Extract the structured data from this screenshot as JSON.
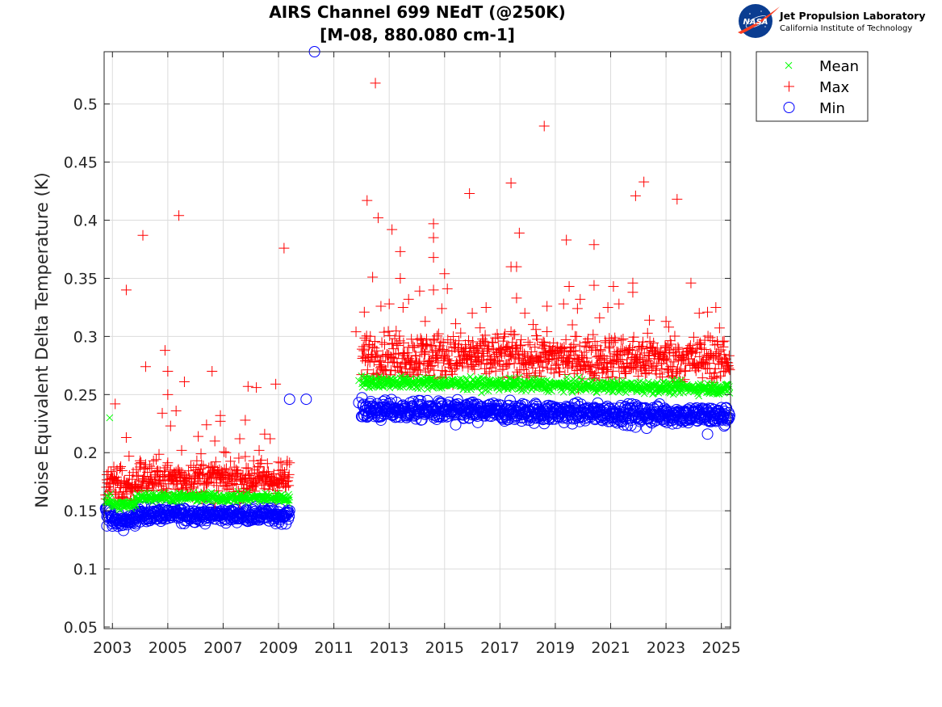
{
  "logo": {
    "org_name": "Jet Propulsion Laboratory",
    "org_sub": "California Institute of Technology",
    "badge_text": "NASA"
  },
  "chart_data": {
    "type": "scatter",
    "title": "AIRS Channel 699 NEdT (@250K)",
    "subtitle": "[M-08, 880.080 cm-1]",
    "xlabel": "",
    "ylabel": "Noise Equivalent Delta Temperature (K)",
    "xlim": [
      2002.7,
      2025.33
    ],
    "ylim": [
      0.0486,
      0.545
    ],
    "grid": true,
    "legend_position": "top-right-outside",
    "x_ticks": [
      2003,
      2005,
      2007,
      2009,
      2011,
      2013,
      2015,
      2017,
      2019,
      2021,
      2023,
      2025
    ],
    "x_tick_labels": [
      "2003",
      "2005",
      "2007",
      "2009",
      "2011",
      "2013",
      "2015",
      "2017",
      "2019",
      "2021",
      "2023",
      "2025"
    ],
    "y_ticks": [
      0.05,
      0.1,
      0.15,
      0.2,
      0.25,
      0.3,
      0.35,
      0.4,
      0.45,
      0.5
    ],
    "y_tick_labels": [
      "0.05",
      "0.1",
      "0.15",
      "0.2",
      "0.25",
      "0.3",
      "0.35",
      "0.4",
      "0.45",
      "0.5"
    ],
    "series": [
      {
        "name": "Mean",
        "marker": "x",
        "color": "#00ff00",
        "bands": [
          {
            "x_start": 2002.75,
            "x_end": 2002.95,
            "y_start": 0.16,
            "y_end": 0.16,
            "spread": 0.003
          },
          {
            "x_start": 2002.95,
            "x_end": 2003.85,
            "y_start": 0.155,
            "y_end": 0.155,
            "spread": 0.002
          },
          {
            "x_start": 2003.85,
            "x_end": 2009.4,
            "y_start": 0.162,
            "y_end": 0.161,
            "spread": 0.002
          },
          {
            "x_start": 2012.0,
            "x_end": 2025.3,
            "y_start": 0.261,
            "y_end": 0.255,
            "spread": 0.0025
          }
        ],
        "outliers": [
          {
            "x": 2002.9,
            "y": 0.23
          },
          {
            "x": 2011.9,
            "y": 0.262
          }
        ]
      },
      {
        "name": "Max",
        "marker": "+",
        "color": "#ff0000",
        "bands": [
          {
            "x_start": 2002.75,
            "x_end": 2003.85,
            "y_start": 0.173,
            "y_end": 0.17,
            "spread": 0.008
          },
          {
            "x_start": 2003.85,
            "x_end": 2009.4,
            "y_start": 0.178,
            "y_end": 0.177,
            "spread": 0.008
          },
          {
            "x_start": 2012.0,
            "x_end": 2025.3,
            "y_start": 0.284,
            "y_end": 0.28,
            "spread": 0.01
          }
        ],
        "outliers": [
          {
            "x": 2002.8,
            "y": 0.181
          },
          {
            "x": 2003.1,
            "y": 0.242
          },
          {
            "x": 2003.5,
            "y": 0.34
          },
          {
            "x": 2003.5,
            "y": 0.213
          },
          {
            "x": 2003.3,
            "y": 0.188
          },
          {
            "x": 2003.6,
            "y": 0.197
          },
          {
            "x": 2004.1,
            "y": 0.387
          },
          {
            "x": 2004.2,
            "y": 0.274
          },
          {
            "x": 2004.0,
            "y": 0.193
          },
          {
            "x": 2004.9,
            "y": 0.288
          },
          {
            "x": 2005.0,
            "y": 0.27
          },
          {
            "x": 2005.0,
            "y": 0.25
          },
          {
            "x": 2004.8,
            "y": 0.234
          },
          {
            "x": 2005.1,
            "y": 0.223
          },
          {
            "x": 2005.3,
            "y": 0.236
          },
          {
            "x": 2005.4,
            "y": 0.404
          },
          {
            "x": 2005.6,
            "y": 0.261
          },
          {
            "x": 2005.5,
            "y": 0.202
          },
          {
            "x": 2006.1,
            "y": 0.214
          },
          {
            "x": 2006.2,
            "y": 0.199
          },
          {
            "x": 2006.4,
            "y": 0.224
          },
          {
            "x": 2006.6,
            "y": 0.27
          },
          {
            "x": 2006.7,
            "y": 0.21
          },
          {
            "x": 2006.9,
            "y": 0.232
          },
          {
            "x": 2006.9,
            "y": 0.227
          },
          {
            "x": 2007.1,
            "y": 0.2
          },
          {
            "x": 2007.6,
            "y": 0.212
          },
          {
            "x": 2007.8,
            "y": 0.228
          },
          {
            "x": 2007.9,
            "y": 0.257
          },
          {
            "x": 2008.1,
            "y": 0.193
          },
          {
            "x": 2008.2,
            "y": 0.256
          },
          {
            "x": 2008.3,
            "y": 0.202
          },
          {
            "x": 2008.5,
            "y": 0.216
          },
          {
            "x": 2008.7,
            "y": 0.212
          },
          {
            "x": 2008.9,
            "y": 0.259
          },
          {
            "x": 2009.0,
            "y": 0.192
          },
          {
            "x": 2009.2,
            "y": 0.376
          },
          {
            "x": 2011.8,
            "y": 0.304
          },
          {
            "x": 2012.1,
            "y": 0.321
          },
          {
            "x": 2012.2,
            "y": 0.417
          },
          {
            "x": 2012.4,
            "y": 0.351
          },
          {
            "x": 2012.5,
            "y": 0.518
          },
          {
            "x": 2012.6,
            "y": 0.402
          },
          {
            "x": 2012.7,
            "y": 0.326
          },
          {
            "x": 2013.0,
            "y": 0.328
          },
          {
            "x": 2013.1,
            "y": 0.392
          },
          {
            "x": 2013.4,
            "y": 0.373
          },
          {
            "x": 2013.4,
            "y": 0.35
          },
          {
            "x": 2013.5,
            "y": 0.325
          },
          {
            "x": 2013.7,
            "y": 0.332
          },
          {
            "x": 2014.1,
            "y": 0.339
          },
          {
            "x": 2014.3,
            "y": 0.313
          },
          {
            "x": 2014.6,
            "y": 0.397
          },
          {
            "x": 2014.6,
            "y": 0.385
          },
          {
            "x": 2014.6,
            "y": 0.368
          },
          {
            "x": 2014.6,
            "y": 0.34
          },
          {
            "x": 2014.9,
            "y": 0.324
          },
          {
            "x": 2015.0,
            "y": 0.354
          },
          {
            "x": 2015.1,
            "y": 0.341
          },
          {
            "x": 2015.4,
            "y": 0.311
          },
          {
            "x": 2015.9,
            "y": 0.423
          },
          {
            "x": 2016.0,
            "y": 0.32
          },
          {
            "x": 2016.5,
            "y": 0.325
          },
          {
            "x": 2017.4,
            "y": 0.432
          },
          {
            "x": 2017.4,
            "y": 0.36
          },
          {
            "x": 2017.6,
            "y": 0.36
          },
          {
            "x": 2017.7,
            "y": 0.389
          },
          {
            "x": 2017.6,
            "y": 0.333
          },
          {
            "x": 2017.9,
            "y": 0.32
          },
          {
            "x": 2018.3,
            "y": 0.306
          },
          {
            "x": 2018.6,
            "y": 0.481
          },
          {
            "x": 2018.7,
            "y": 0.326
          },
          {
            "x": 2019.4,
            "y": 0.383
          },
          {
            "x": 2019.5,
            "y": 0.343
          },
          {
            "x": 2019.3,
            "y": 0.328
          },
          {
            "x": 2019.8,
            "y": 0.324
          },
          {
            "x": 2019.9,
            "y": 0.332
          },
          {
            "x": 2020.4,
            "y": 0.379
          },
          {
            "x": 2020.4,
            "y": 0.344
          },
          {
            "x": 2020.6,
            "y": 0.316
          },
          {
            "x": 2020.9,
            "y": 0.325
          },
          {
            "x": 2021.1,
            "y": 0.343
          },
          {
            "x": 2021.3,
            "y": 0.328
          },
          {
            "x": 2021.8,
            "y": 0.346
          },
          {
            "x": 2021.8,
            "y": 0.338
          },
          {
            "x": 2021.9,
            "y": 0.421
          },
          {
            "x": 2022.2,
            "y": 0.433
          },
          {
            "x": 2022.4,
            "y": 0.314
          },
          {
            "x": 2023.0,
            "y": 0.313
          },
          {
            "x": 2023.1,
            "y": 0.308
          },
          {
            "x": 2023.4,
            "y": 0.418
          },
          {
            "x": 2023.9,
            "y": 0.346
          },
          {
            "x": 2024.2,
            "y": 0.32
          },
          {
            "x": 2024.5,
            "y": 0.321
          },
          {
            "x": 2024.8,
            "y": 0.325
          },
          {
            "x": 2024.6,
            "y": 0.299
          },
          {
            "x": 2025.1,
            "y": 0.296
          }
        ]
      },
      {
        "name": "Min",
        "marker": "o",
        "color": "#0000ff",
        "bands": [
          {
            "x_start": 2002.75,
            "x_end": 2003.0,
            "y_start": 0.147,
            "y_end": 0.147,
            "spread": 0.005
          },
          {
            "x_start": 2003.0,
            "x_end": 2003.85,
            "y_start": 0.141,
            "y_end": 0.141,
            "spread": 0.003
          },
          {
            "x_start": 2003.85,
            "x_end": 2009.4,
            "y_start": 0.147,
            "y_end": 0.146,
            "spread": 0.003
          },
          {
            "x_start": 2012.0,
            "x_end": 2025.3,
            "y_start": 0.237,
            "y_end": 0.232,
            "spread": 0.004
          }
        ],
        "outliers": [
          {
            "x": 2010.3,
            "y": 0.545
          },
          {
            "x": 2009.4,
            "y": 0.246
          },
          {
            "x": 2010.0,
            "y": 0.246
          },
          {
            "x": 2011.9,
            "y": 0.243
          },
          {
            "x": 2002.8,
            "y": 0.137
          },
          {
            "x": 2005.6,
            "y": 0.139
          },
          {
            "x": 2008.9,
            "y": 0.139
          },
          {
            "x": 2012.7,
            "y": 0.228
          },
          {
            "x": 2015.4,
            "y": 0.224
          },
          {
            "x": 2016.2,
            "y": 0.226
          },
          {
            "x": 2018.6,
            "y": 0.225
          },
          {
            "x": 2021.9,
            "y": 0.222
          },
          {
            "x": 2022.3,
            "y": 0.221
          },
          {
            "x": 2024.5,
            "y": 0.216
          },
          {
            "x": 2025.1,
            "y": 0.223
          }
        ]
      }
    ]
  }
}
